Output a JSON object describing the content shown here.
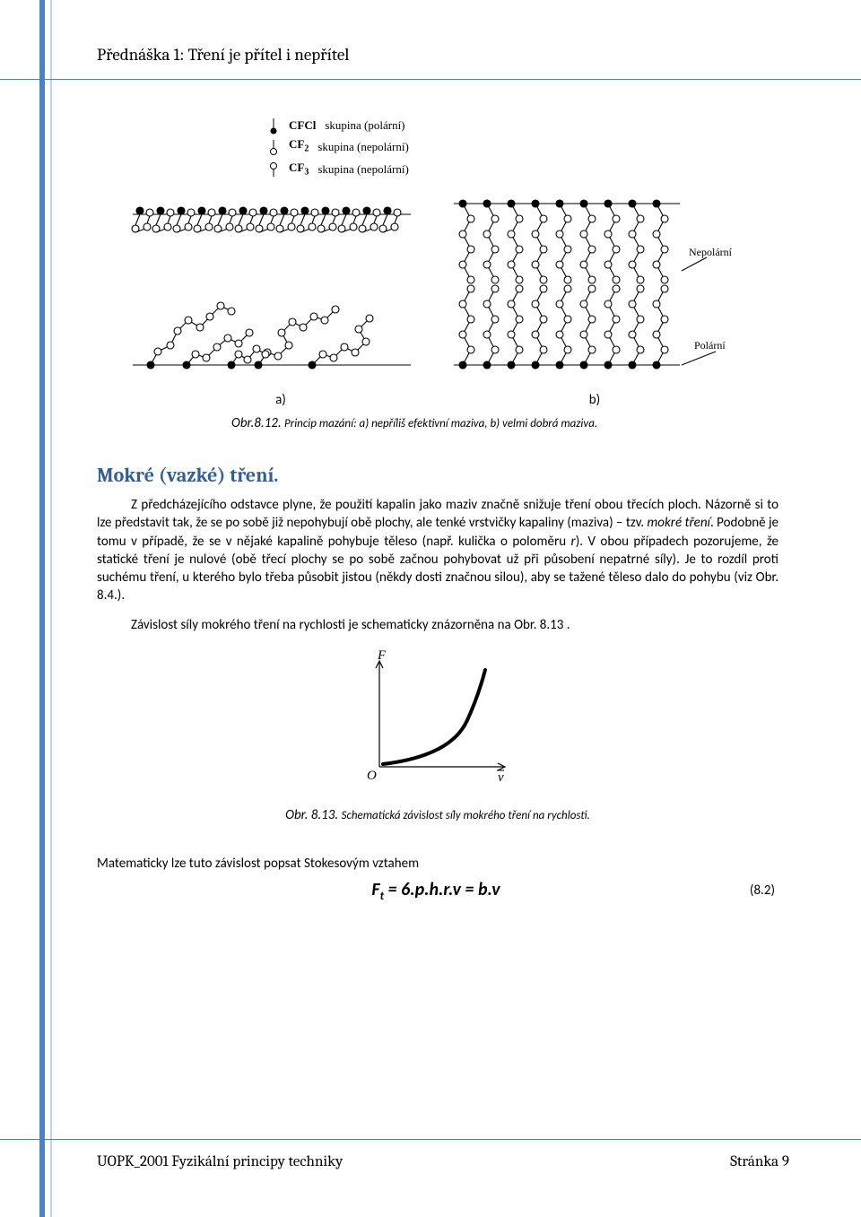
{
  "header": {
    "title": "Přednáška 1: Tření je přítel i nepřítel"
  },
  "fig812": {
    "legend": [
      {
        "symbol_type": "filled-circle",
        "label": "CFCl",
        "desc": "skupina (polární)"
      },
      {
        "symbol_type": "open-circle",
        "label": "CF",
        "label_sub": "2",
        "desc": "skupina (nepolární)"
      },
      {
        "symbol_type": "tail-circle",
        "label": "CF",
        "label_sub": "3",
        "desc": "skupina (nepolární)"
      }
    ],
    "panel_a_label": "a)",
    "panel_b_label": "b)",
    "side_labels": {
      "top": "Nepolární",
      "bottom": "Polární"
    },
    "caption_ref": "Obr.8.12.",
    "caption_text": "Princip mazání: a) nepříliš efektivní maziva, b) velmi dobrá maziva.",
    "style": {
      "panel_bg": "#ffffff",
      "stroke": "#000000",
      "stroke_width": 1.1,
      "circle_r": 4
    }
  },
  "section": {
    "heading": "Mokré (vazké) tření."
  },
  "paragraph1": "Z předcházejícího odstavce plyne, že použití kapalin jako maziv značně snižuje tření obou třecích ploch. Názorně si to lze představit tak, že se po sobě již nepohybují obě plochy, ale tenké vrstvičky kapaliny (maziva) – tzv. ",
  "paragraph1_ital": "mokré tření",
  "paragraph1_cont": ". Podobně je tomu v případě, že se v nějaké kapalině pohybuje těleso (např. kulička o poloměru ",
  "paragraph1_r": "r",
  "paragraph1_cont2": "). V obou případech pozorujeme, že statické tření je nulové (obě třecí plochy se po sobě začnou pohybovat už při působení nepatrné síly). Je to rozdíl proti suchému tření, u kterého bylo třeba působit jistou (někdy dosti značnou silou), aby se tažené těleso dalo do pohybu (viz Obr. 8.4.).",
  "paragraph2": "Závislost síly mokrého tření na rychlosti je schematicky znázorněna na Obr. 8.13 .",
  "graph": {
    "F_label": "F",
    "O_label": "O",
    "v_label": "v",
    "caption_ref": "Obr. 8.13.",
    "caption_text": "Schematická závislost síly mokrého tření na rychlosti.",
    "style": {
      "axis_stroke": "#000000",
      "axis_width": 1.2,
      "curve_stroke": "#000000",
      "curve_width": 4
    }
  },
  "mathline": "Matematicky lze tuto závislost popsat Stokesovým vztahem",
  "equation": {
    "lhs": "F",
    "sub": "t",
    "rest": " = 6.p.h.r.v = b.v",
    "num": "(8.2)"
  },
  "footer": {
    "left": "UOPK_2001 Fyzikální principy techniky",
    "right": "Stránka 9"
  },
  "colors": {
    "accent": "#4f81bd",
    "heading": "#365f91",
    "text": "#000000",
    "bg": "#ffffff"
  }
}
